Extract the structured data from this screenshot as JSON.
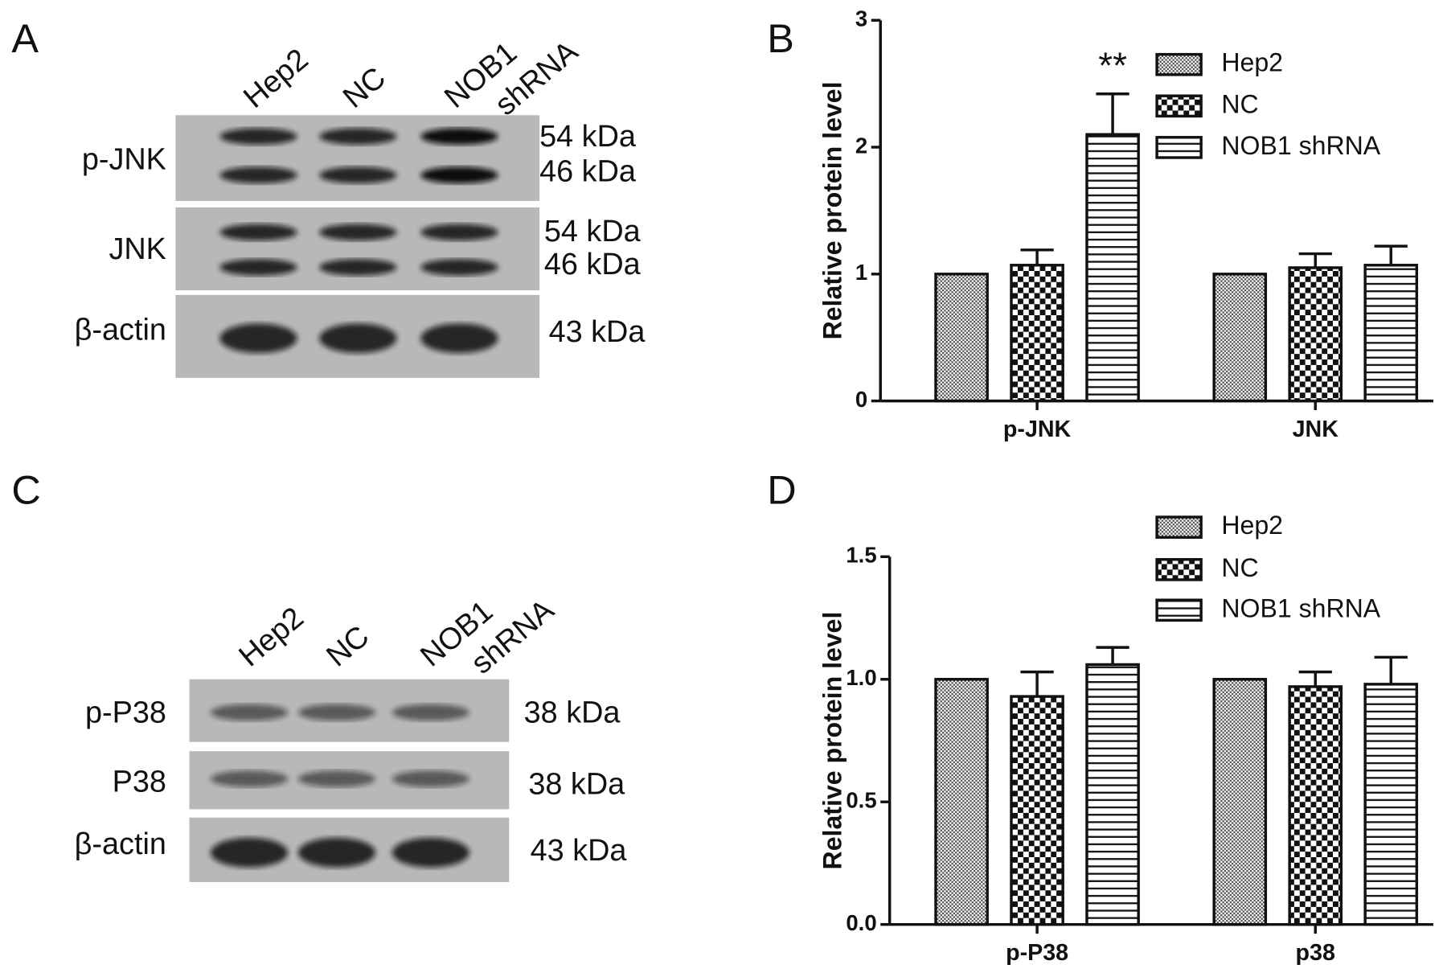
{
  "panels": [
    "A",
    "B",
    "C",
    "D"
  ],
  "blots": [
    {
      "lanes": [
        [
          "Hep2"
        ],
        [
          "NC"
        ],
        [
          "NOB1",
          "shRNA"
        ]
      ],
      "rows": [
        {
          "label": "p-JNK",
          "sizes": [
            "54 kDa",
            "46 kDa"
          ]
        },
        {
          "label": "JNK",
          "sizes": [
            "54 kDa",
            "46 kDa"
          ]
        },
        {
          "label": "β-actin",
          "sizes": [
            "43 kDa"
          ]
        }
      ]
    },
    {
      "lanes": [
        [
          "Hep2"
        ],
        [
          "NC"
        ],
        [
          "NOB1",
          "shRNA"
        ]
      ],
      "rows": [
        {
          "label": "p-P38",
          "sizes": [
            "38 kDa"
          ]
        },
        {
          "label": "P38",
          "sizes": [
            "38 kDa"
          ]
        },
        {
          "label": "β-actin",
          "sizes": [
            "43 kDa"
          ]
        }
      ]
    }
  ],
  "chart_data": [
    {
      "type": "bar",
      "ylabel": "Relative protein level",
      "categories": [
        "p-JNK",
        "JNK"
      ],
      "ylim": [
        0,
        3
      ],
      "yticks": [
        0,
        1,
        2,
        3
      ],
      "legend": "upper right",
      "series": [
        {
          "name": "Hep2",
          "pattern": "dots",
          "values": [
            1,
            1
          ]
        },
        {
          "name": "NC",
          "pattern": "checker",
          "values": [
            1.07,
            1.05
          ],
          "errors": [
            0.12,
            0.11
          ]
        },
        {
          "name": "NOB1 shRNA",
          "pattern": "hlines",
          "values": [
            2.1,
            1.07
          ],
          "errors": [
            0.32,
            0.15
          ],
          "annotations": [
            "**",
            null
          ]
        }
      ]
    },
    {
      "type": "bar",
      "ylabel": "Relative protein level",
      "categories": [
        "p-P38",
        "p38"
      ],
      "ylim": [
        0,
        1.5
      ],
      "yticks": [
        {
          "value": 0,
          "label": "0.0"
        },
        {
          "value": 0.5,
          "label": "0.5"
        },
        {
          "value": 1,
          "label": "1.0"
        },
        1.5
      ],
      "legend": "upper right",
      "series": [
        {
          "name": "Hep2",
          "pattern": "dots",
          "values": [
            1,
            1
          ]
        },
        {
          "name": "NC",
          "pattern": "checker",
          "values": [
            0.93,
            0.97
          ],
          "errors": [
            0.1,
            0.06
          ]
        },
        {
          "name": "NOB1 shRNA",
          "pattern": "hlines",
          "values": [
            1.06,
            0.98
          ],
          "errors": [
            0.07,
            0.11
          ]
        }
      ]
    }
  ]
}
